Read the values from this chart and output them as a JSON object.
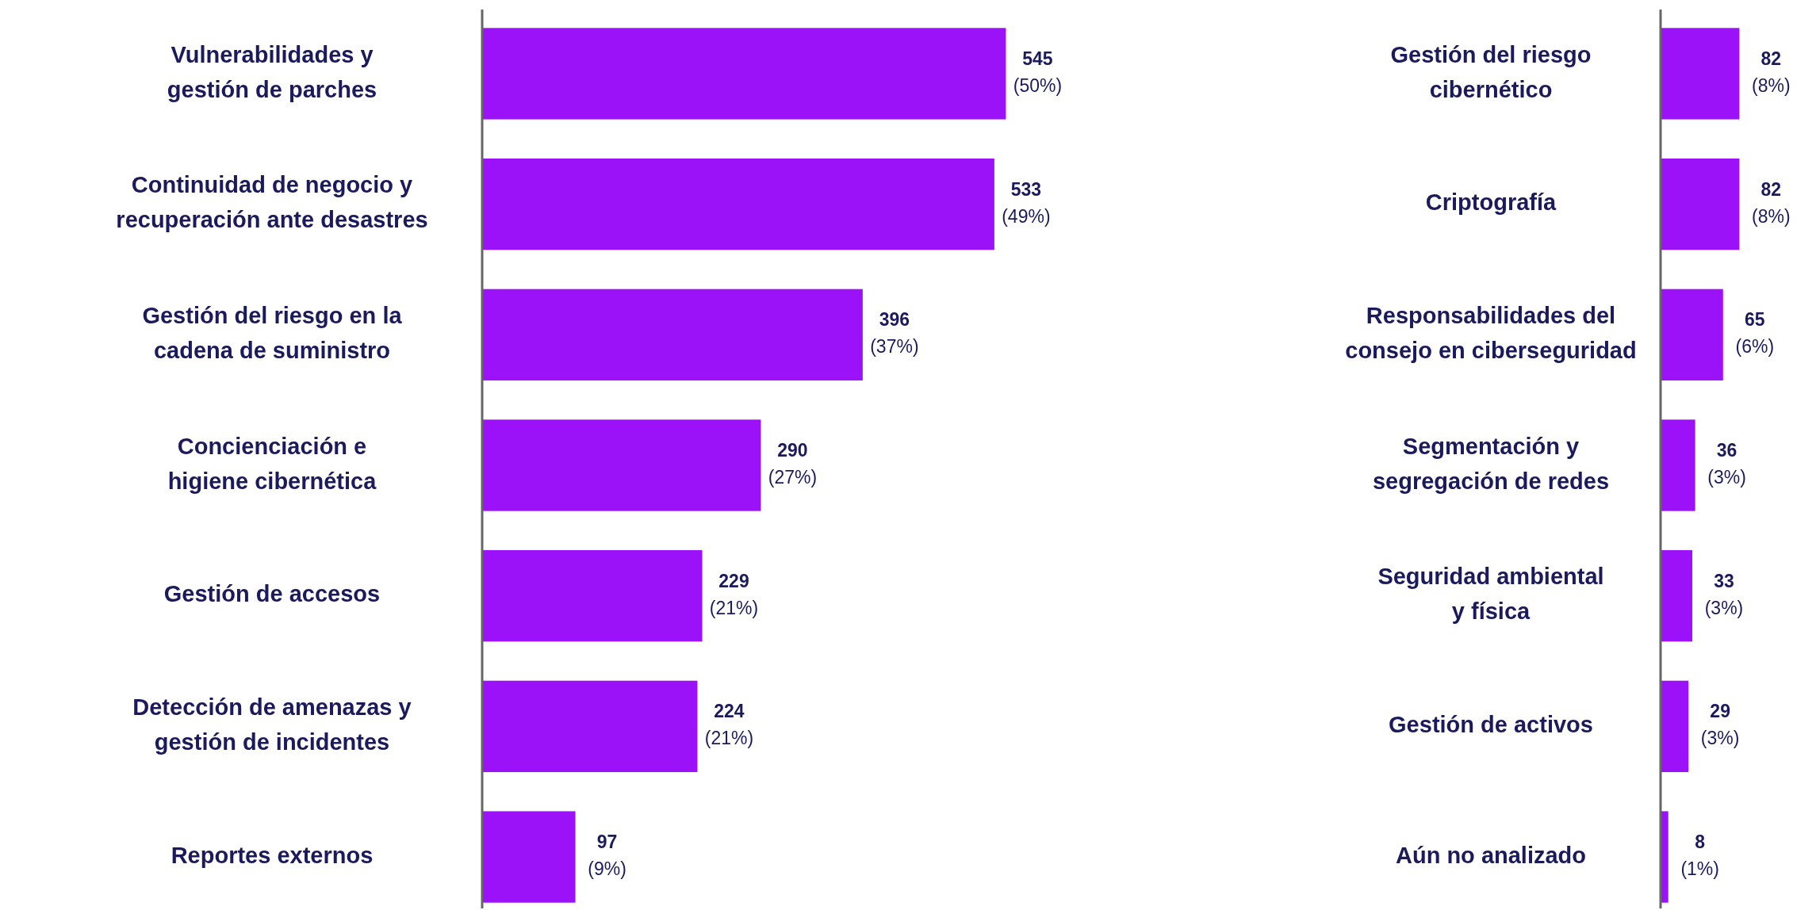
{
  "chart_data": [
    {
      "type": "bar",
      "orientation": "horizontal",
      "color": "#9b12f8",
      "categories": [
        "Vulnerabilidades y\ngestión de parches",
        "Continuidad de negocio y\nrecuperación ante desastres",
        "Gestión del riesgo en la\ncadena de suministro",
        "Concienciación e\nhigiene cibernética",
        "Gestión de accesos",
        "Detección de amenazas y\ngestión de incidentes",
        "Reportes externos"
      ],
      "values": [
        545,
        533,
        396,
        290,
        229,
        224,
        97
      ],
      "value_labels": [
        "545\n(50%)",
        "533\n(49%)",
        "396\n(37%)",
        "290\n(27%)",
        "229\n(21%)",
        "224\n(21%)",
        "97\n(9%)"
      ]
    },
    {
      "type": "bar",
      "orientation": "horizontal",
      "color": "#9b12f8",
      "categories": [
        "Gestión del riesgo\ncibernético",
        "Criptografía",
        "Responsabilidades del\nconsejo en ciberseguridad",
        "Segmentación y\nsegregación de redes",
        "Seguridad ambiental\ny física",
        "Gestión de activos",
        "Aún no analizado"
      ],
      "values": [
        82,
        82,
        65,
        36,
        33,
        29,
        8
      ],
      "value_labels": [
        "82\n(8%)",
        "82\n(8%)",
        "65\n(6%)",
        "36\n(3%)",
        "33\n(3%)",
        "29\n(3%)",
        "8\n(1%)"
      ]
    }
  ]
}
